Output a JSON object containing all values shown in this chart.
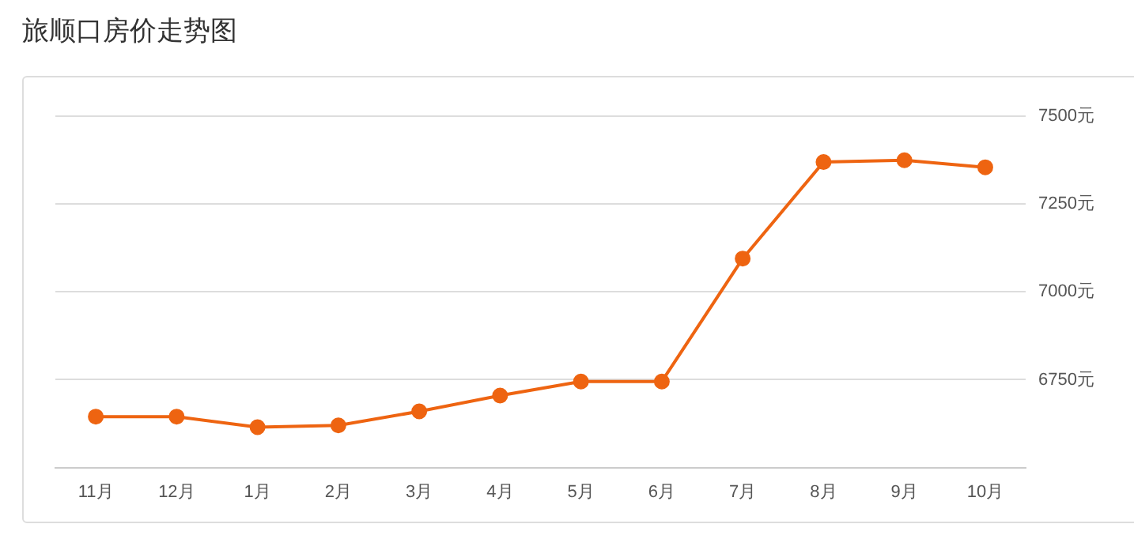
{
  "chart_data": {
    "type": "line",
    "title": "旅顺口房价走势图",
    "categories": [
      "11月",
      "12月",
      "1月",
      "2月",
      "3月",
      "4月",
      "5月",
      "6月",
      "7月",
      "8月",
      "9月",
      "10月"
    ],
    "series": [
      {
        "color": "#ee6411",
        "values": [
          6645,
          6645,
          6615,
          6620,
          6660,
          6705,
          6745,
          6745,
          7095,
          7370,
          7375,
          7355
        ]
      }
    ],
    "ylim": [
      6500,
      7500
    ],
    "yticks": [
      {
        "value": 6500,
        "label": null
      },
      {
        "value": 6750,
        "label": "6750元"
      },
      {
        "value": 7000,
        "label": "7000元"
      },
      {
        "value": 7250,
        "label": "7250元"
      },
      {
        "value": 7500,
        "label": "7500元"
      }
    ],
    "grid": "y",
    "legend": false,
    "marker": "circle",
    "line_style": "solid"
  }
}
